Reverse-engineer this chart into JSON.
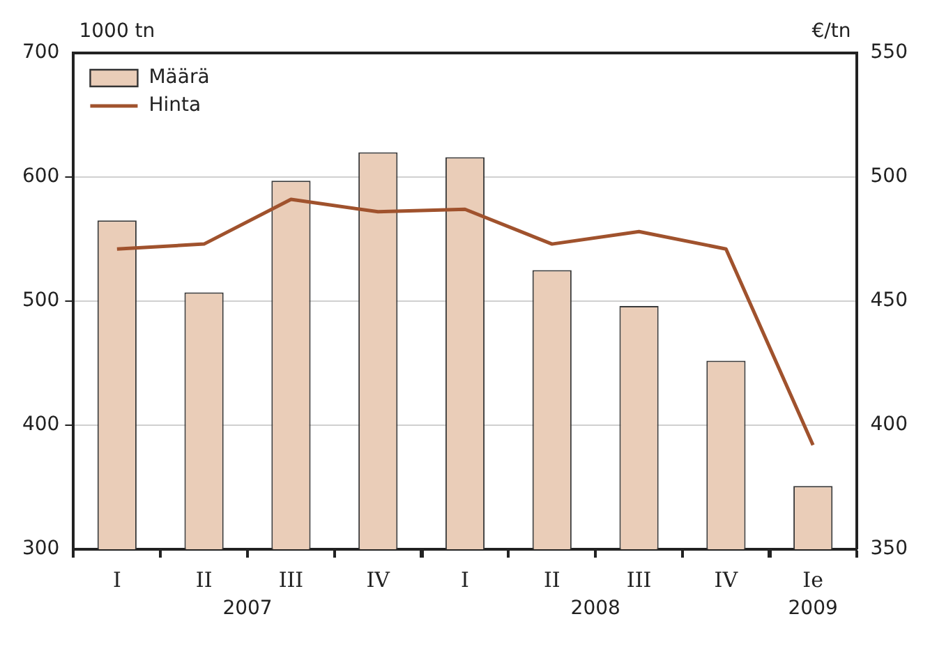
{
  "chart_data": {
    "type": "bar",
    "ylabel": "1000 tn",
    "y2label": "€/tn",
    "categories": [
      "I",
      "II",
      "III",
      "IV",
      "I",
      "II",
      "III",
      "IV",
      "Ie"
    ],
    "series": [
      {
        "name": "Määrä",
        "color": "#eacdb8",
        "values": [
          565,
          507,
          597,
          620,
          616,
          525,
          496,
          452,
          351
        ]
      },
      {
        "name": "Hinta",
        "type": "line",
        "axis": "y2",
        "color": "#a0522d",
        "values": [
          471,
          473,
          491,
          486,
          487,
          473,
          478,
          471,
          392
        ]
      }
    ],
    "ylim": [
      300,
      700
    ],
    "yticks": [
      300,
      400,
      500,
      600,
      700
    ],
    "y2lim": [
      350,
      550
    ],
    "y2ticks": [
      350,
      400,
      450,
      500,
      550
    ],
    "annotations": [
      "2007",
      "2008",
      "2009"
    ],
    "grid": "y",
    "legend": "top left",
    "marker": "none",
    "line_style": "solid"
  }
}
